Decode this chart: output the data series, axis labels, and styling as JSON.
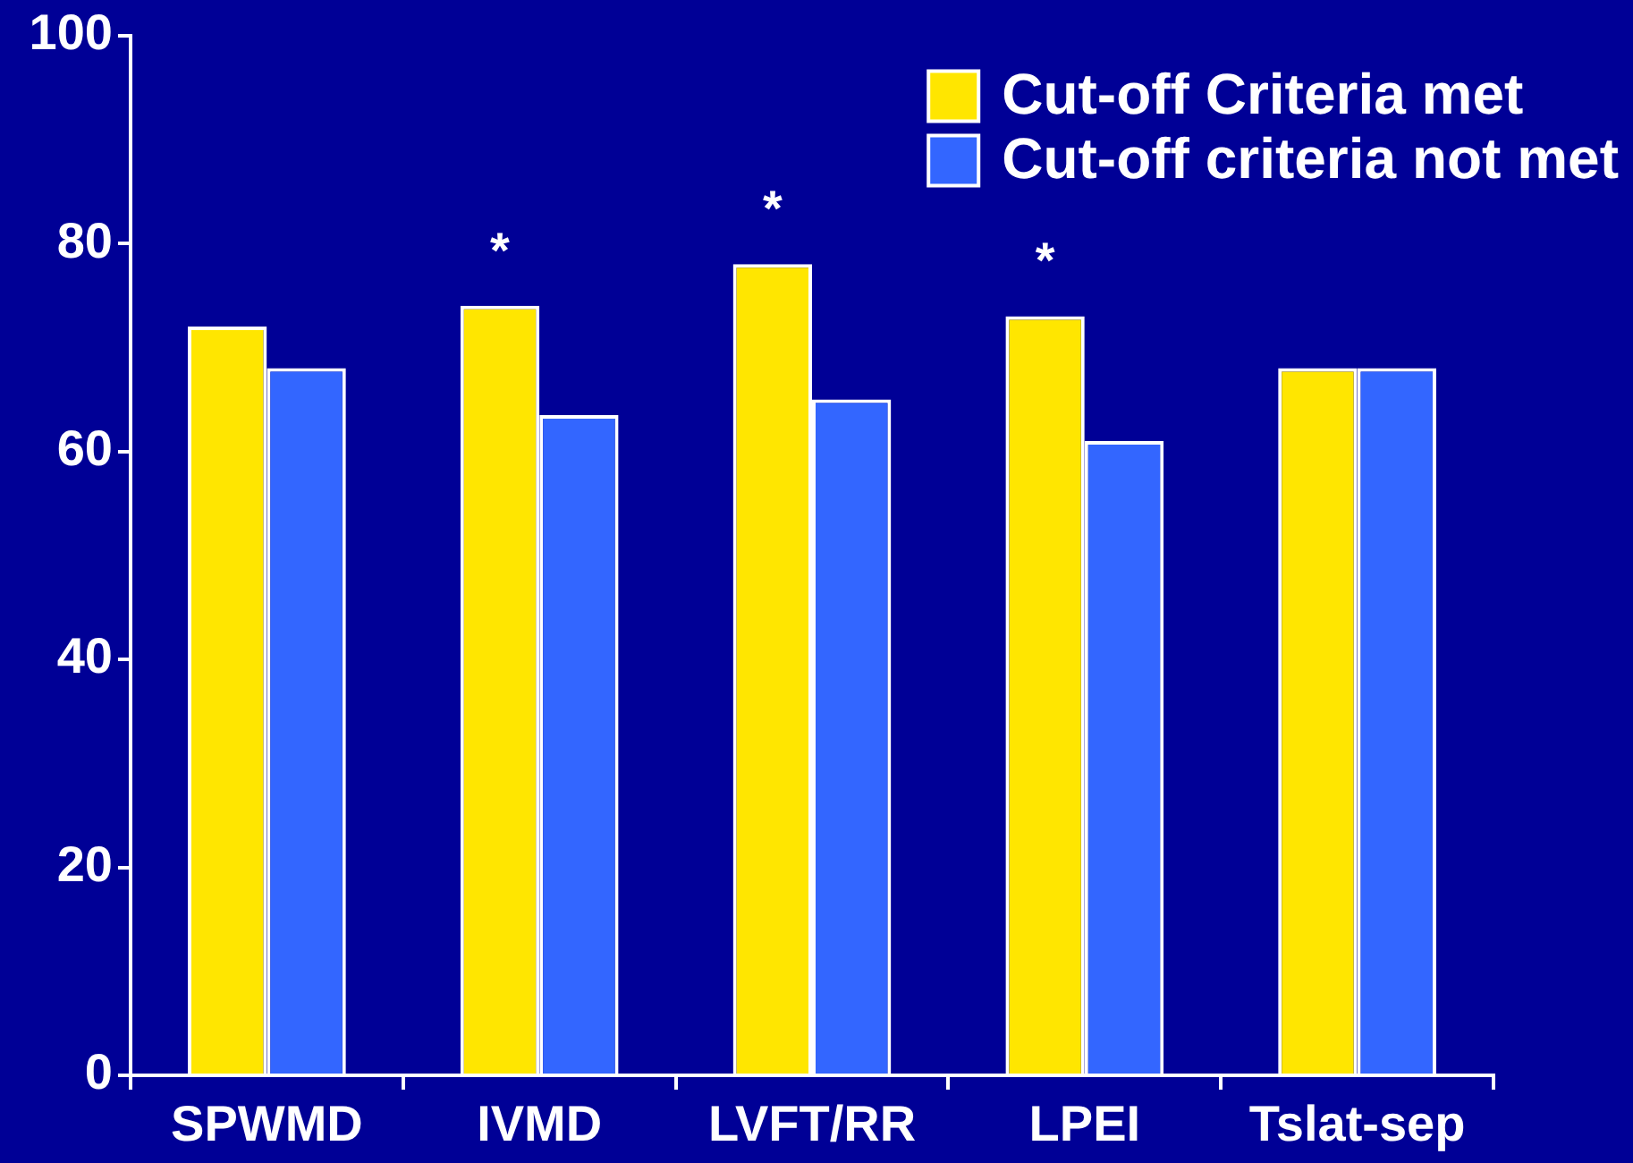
{
  "chart_data": {
    "type": "bar",
    "categories": [
      "SPWMD",
      "IVMD",
      "LVFT/RR",
      "LPEI",
      "Tslat-sep"
    ],
    "series": [
      {
        "name": "Cut-off Criteria met",
        "color": "#ffe600",
        "values": [
          72,
          74,
          78,
          73,
          68
        ]
      },
      {
        "name": "Cut-off criteria not met",
        "color": "#3366ff",
        "values": [
          68,
          63.5,
          65,
          61,
          68
        ]
      }
    ],
    "ylim": [
      0,
      100
    ],
    "yticks": [
      0,
      20,
      40,
      60,
      80,
      100
    ],
    "annotations": [
      {
        "text": "*",
        "x": "IVMD",
        "y": 74
      },
      {
        "text": "*",
        "x": "LVFT/RR",
        "y": 78
      },
      {
        "text": "*",
        "x": "LPEI",
        "y": 73
      }
    ],
    "grid": false,
    "legend": "top right"
  }
}
